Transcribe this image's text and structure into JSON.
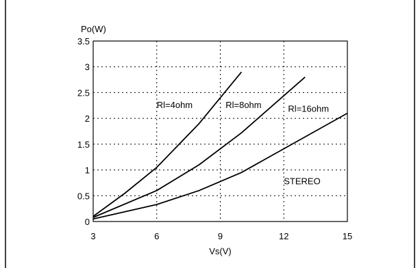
{
  "chart_data": {
    "type": "line",
    "title": "",
    "xlabel": "Vs(V)",
    "ylabel": "Po(W)",
    "xlim": [
      3,
      15
    ],
    "ylim": [
      0,
      3.5
    ],
    "xticks": [
      3,
      6,
      9,
      12,
      15
    ],
    "yticks": [
      0,
      0.5,
      1,
      1.5,
      2,
      2.5,
      3,
      3.5
    ],
    "x_tick_labels": [
      "3",
      "6",
      "9",
      "12",
      "15"
    ],
    "y_tick_labels": [
      "0",
      "0.5",
      "1",
      "1.5",
      "2",
      "2.5",
      "3",
      "3.5"
    ],
    "grid": true,
    "series": [
      {
        "name": "Rl=4ohm",
        "x": [
          3,
          4.5,
          6,
          8,
          10
        ],
        "y": [
          0.1,
          0.55,
          1.05,
          1.9,
          2.9
        ]
      },
      {
        "name": "Rl=8ohm",
        "x": [
          3,
          6,
          8,
          10,
          13
        ],
        "y": [
          0.08,
          0.6,
          1.1,
          1.72,
          2.8
        ]
      },
      {
        "name": "Rl=16ohm",
        "x": [
          3,
          6,
          8,
          10,
          15
        ],
        "y": [
          0.05,
          0.33,
          0.6,
          0.95,
          2.1
        ]
      }
    ],
    "annotations": [
      {
        "text": "Rl=4ohm",
        "x": 6.0,
        "y": 2.2
      },
      {
        "text": "Rl=8ohm",
        "x": 9.25,
        "y": 2.2
      },
      {
        "text": "Rl=16ohm",
        "x": 12.2,
        "y": 2.13
      },
      {
        "text": "STEREO",
        "x": 12.0,
        "y": 0.72
      }
    ]
  }
}
